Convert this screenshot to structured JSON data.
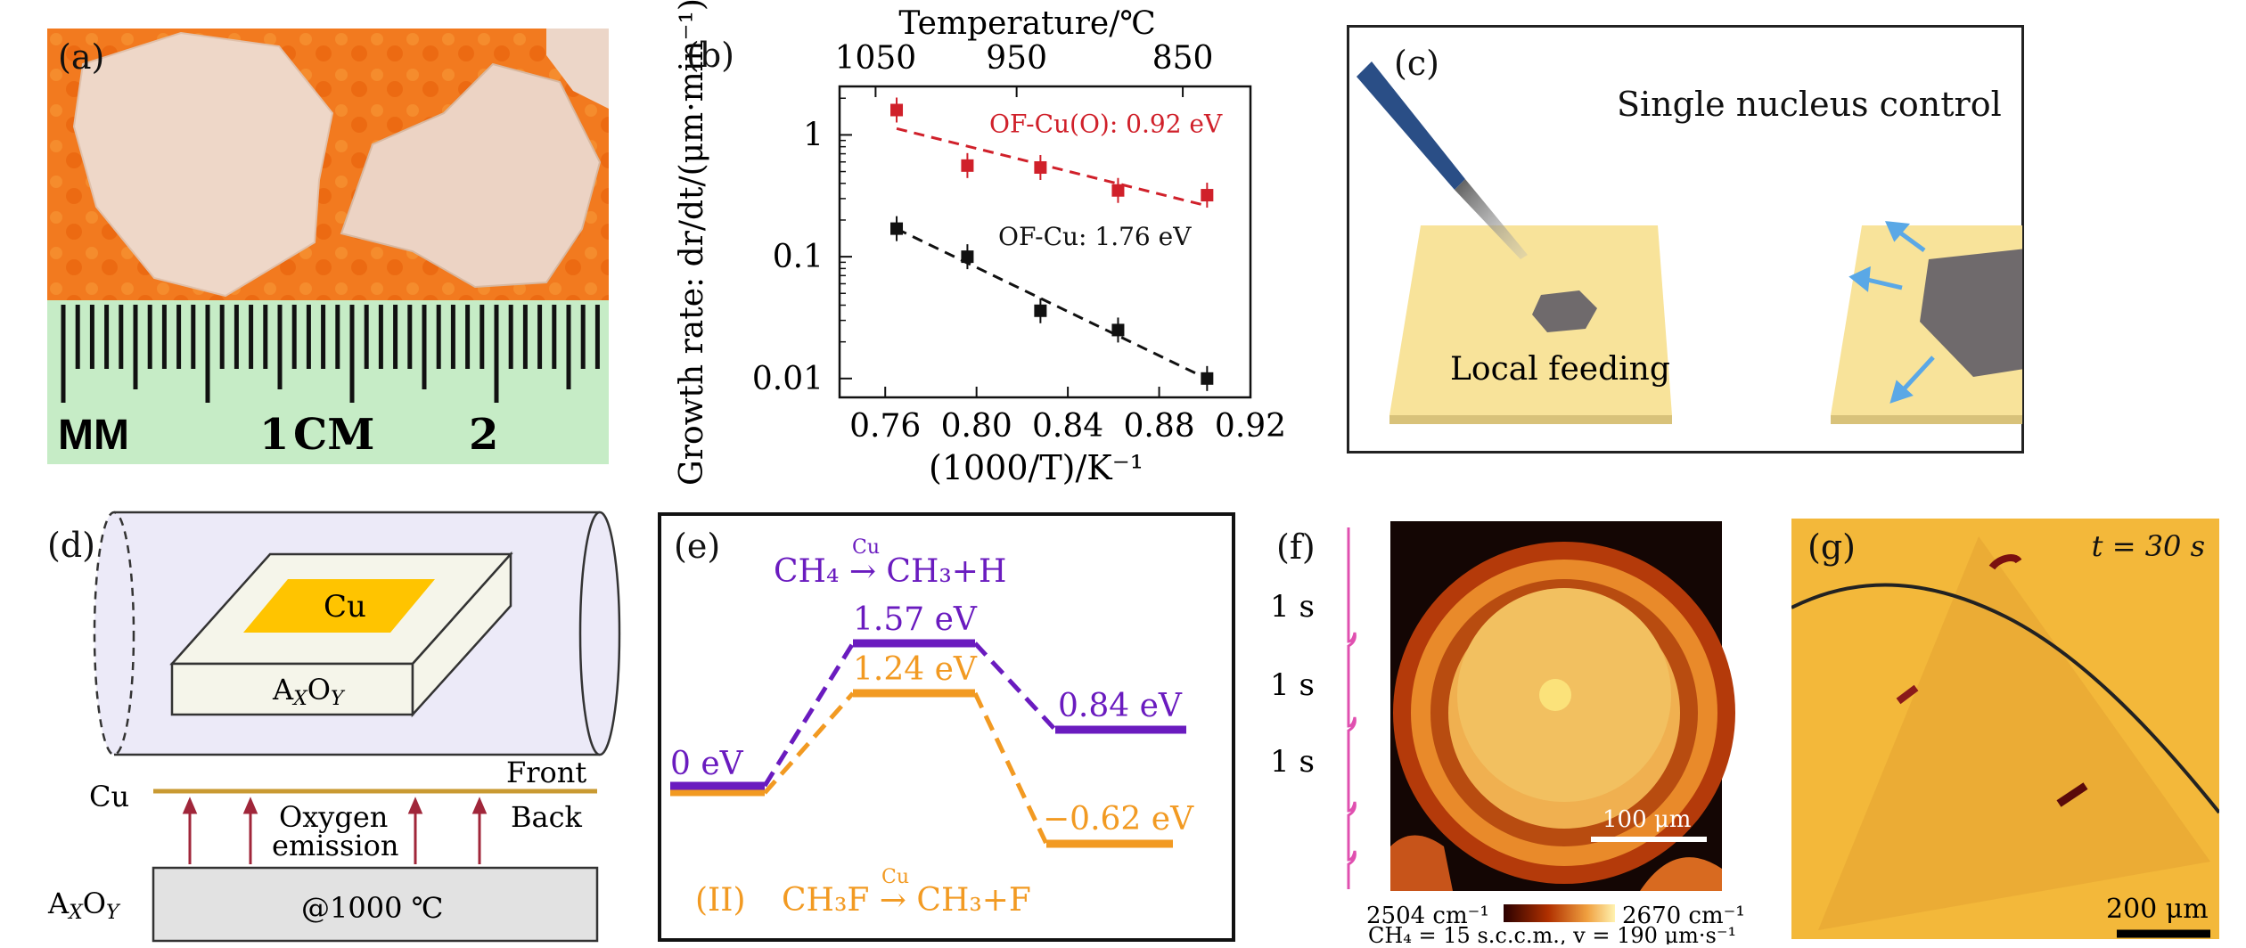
{
  "panels": {
    "a": {
      "label": "(a)",
      "ruler_text": [
        "MM",
        "1",
        "CM",
        "2"
      ]
    },
    "b": {
      "label": "(b)"
    },
    "c": {
      "label": "(c)",
      "title": "Single nucleus control",
      "feed_label": "Local feeding"
    },
    "d": {
      "label": "(d)",
      "cu": "Cu",
      "substrate": "A",
      "sub_x": "X",
      "sub_o": "O",
      "sub_y": "Y",
      "cu_side": "Cu",
      "front": "Front",
      "back": "Back",
      "oxygen1": "Oxygen",
      "oxygen2": "emission",
      "temp": "@1000 ℃"
    },
    "e": {
      "label": "(e)",
      "rxn1": "CH₄ → CH₃+H",
      "rxn1_cat": "Cu",
      "rxn2_prefix": "(II)",
      "rxn2": "CH₃F → CH₃+F",
      "rxn2_cat": "Cu",
      "levels": {
        "p_start": "0 eV",
        "p_ts": "1.57 eV",
        "p_end": "0.84 eV",
        "o_ts": "1.24 eV",
        "o_end": "−0.62 eV"
      },
      "colors": {
        "purple": "#6a1bbf",
        "orange": "#f29a22"
      }
    },
    "f": {
      "label": "(f)",
      "ticks": [
        "1 s",
        "1 s",
        "1 s"
      ],
      "scalebar": "100 μm",
      "cb_min": "2504 cm⁻¹",
      "cb_max": "2670 cm⁻¹",
      "cond": "CH₄ = 15 s.c.c.m., v = 190 μm·s⁻¹"
    },
    "g": {
      "label": "(g)",
      "time": "t = 30 s",
      "scalebar": "200 μm"
    }
  },
  "chart_data": {
    "type": "scatter",
    "xlabel": "(1000/T)/K⁻¹",
    "ylabel": "Growth rate: dr/dt/(μm·min⁻¹)",
    "top_label": "Temperature/℃",
    "yscale": "log",
    "xlim": [
      0.74,
      0.92
    ],
    "ylim": [
      0.007,
      2.5
    ],
    "xticks": [
      "0.76",
      "0.80",
      "0.84",
      "0.88",
      "0.92"
    ],
    "yticks": [
      "0.01",
      "0.1",
      "1"
    ],
    "top_ticks": [
      "1050",
      "950",
      "850"
    ],
    "series": [
      {
        "name": "OF-Cu(O): 0.92 eV",
        "color": "#d0202a",
        "x": [
          0.765,
          0.796,
          0.828,
          0.862,
          0.901
        ],
        "y": [
          1.6,
          0.56,
          0.54,
          0.35,
          0.32
        ]
      },
      {
        "name": "OF-Cu: 1.76 eV",
        "color": "#111111",
        "x": [
          0.765,
          0.796,
          0.828,
          0.862,
          0.901
        ],
        "y": [
          0.17,
          0.1,
          0.036,
          0.025,
          0.01
        ]
      }
    ]
  }
}
